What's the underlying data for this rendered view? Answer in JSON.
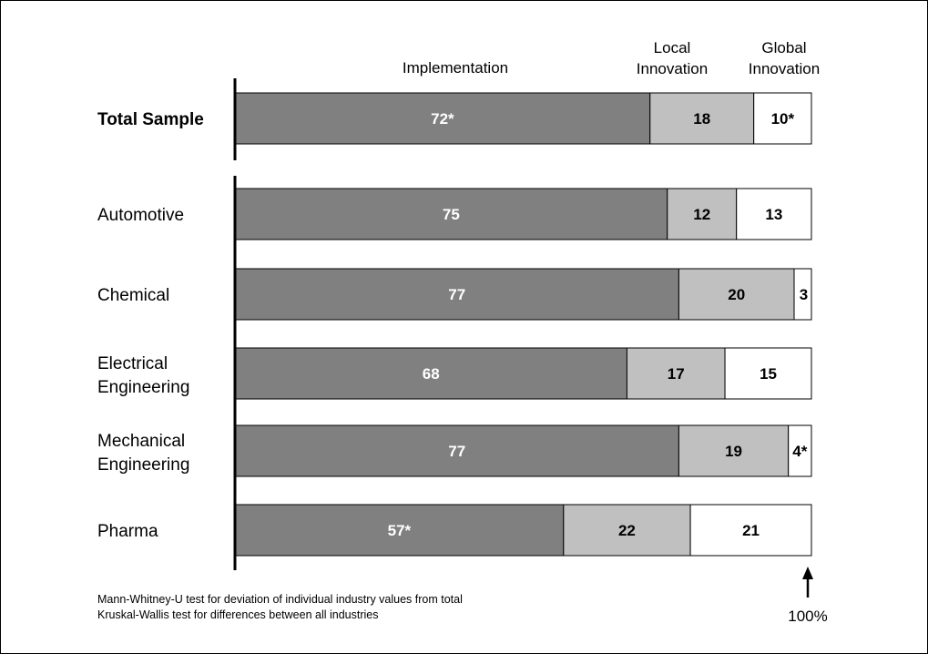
{
  "chart_data": {
    "type": "bar",
    "orientation": "horizontal",
    "stacked": true,
    "headers": [
      [
        "Implementation"
      ],
      [
        "Local",
        "Innovation"
      ],
      [
        "Global",
        "Innovation"
      ]
    ],
    "series": [
      {
        "name": "Implementation",
        "color": "#808080",
        "text_color": "#ffffff"
      },
      {
        "name": "Local Innovation",
        "color": "#c0c0c0",
        "text_color": "#000000"
      },
      {
        "name": "Global Innovation",
        "color": "#ffffff",
        "text_color": "#000000"
      }
    ],
    "rows": [
      {
        "label": [
          "Total Sample"
        ],
        "bold": true,
        "values": [
          72,
          18,
          10
        ],
        "labels": [
          "72*",
          "18",
          "10*"
        ]
      },
      {
        "label": [
          "Automotive"
        ],
        "values": [
          75,
          12,
          13
        ],
        "labels": [
          "75",
          "12",
          "13"
        ]
      },
      {
        "label": [
          "Chemical"
        ],
        "values": [
          77,
          20,
          3
        ],
        "labels": [
          "77",
          "20",
          "3"
        ]
      },
      {
        "label": [
          "Electrical",
          "Engineering"
        ],
        "values": [
          68,
          17,
          15
        ],
        "labels": [
          "68",
          "17",
          "15"
        ]
      },
      {
        "label": [
          "Mechanical",
          "Engineering"
        ],
        "values": [
          77,
          19,
          4
        ],
        "labels": [
          "77",
          "19",
          "4*"
        ]
      },
      {
        "label": [
          "Pharma"
        ],
        "values": [
          57,
          22,
          21
        ],
        "labels": [
          "57*",
          "22",
          "21"
        ]
      }
    ],
    "xlim": [
      0,
      100
    ],
    "end_marker": "100%",
    "notes": [
      "Mann-Whitney-U test for deviation of individual industry values from total",
      "Kruskal-Wallis test for differences between all industries"
    ]
  }
}
